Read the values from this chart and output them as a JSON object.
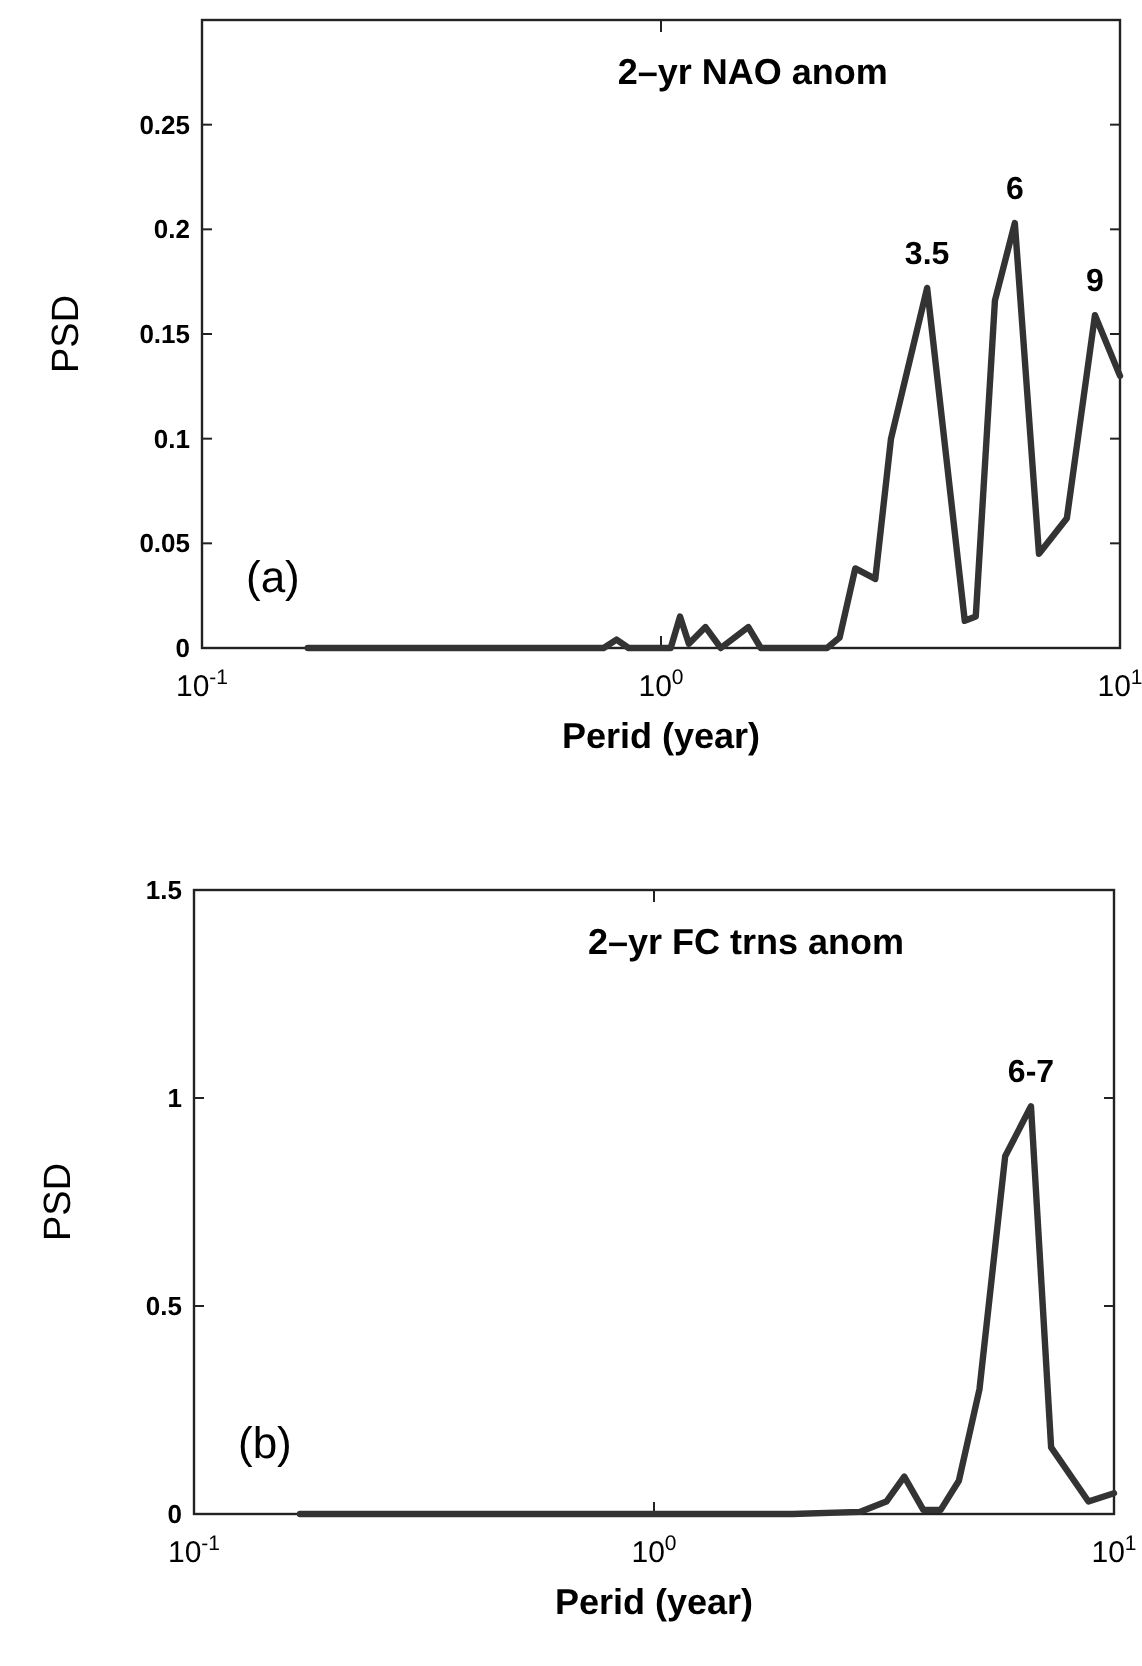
{
  "chart_data": [
    {
      "type": "line",
      "title": "2–yr NAO anom",
      "xlabel": "Perid (year)",
      "ylabel": "PSD",
      "log": "x",
      "color": "#333333",
      "grid": false,
      "marker": "none",
      "line_style": "solid",
      "x": [
        0.17,
        0.5,
        0.75,
        0.8,
        0.85,
        1.05,
        1.1,
        1.15,
        1.25,
        1.35,
        1.55,
        1.65,
        2.3,
        2.45,
        2.65,
        2.93,
        3.17,
        3.8,
        4.59,
        4.85,
        5.34,
        5.9,
        6.66,
        7.66,
        8.82,
        10
      ],
      "values": [
        0,
        0,
        0,
        0.004,
        0,
        0,
        0.015,
        0.002,
        0.01,
        0,
        0.01,
        0,
        0,
        0.005,
        0.038,
        0.033,
        0.1,
        0.172,
        0.013,
        0.015,
        0.166,
        0.203,
        0.045,
        0.062,
        0.159,
        0.13
      ],
      "xlim": [
        0.1,
        10
      ],
      "xticks": [
        {
          "value": 0.1,
          "label": "10$^{-1}$"
        },
        {
          "value": 1,
          "label": "10$^{0}$"
        },
        {
          "value": 10,
          "label": "10$^{1}$"
        }
      ],
      "ylim": [
        0,
        0.3
      ],
      "yticks": [
        0,
        0.05,
        0.1,
        0.15,
        0.2,
        0.25
      ],
      "annotations": [
        "(a)",
        {
          "text": "3.5",
          "x": 3.8,
          "y": 0.172
        },
        {
          "text": "6",
          "x": 5.9,
          "y": 0.203
        },
        {
          "text": "9",
          "x": 8.82,
          "y": 0.159
        }
      ]
    },
    {
      "type": "line",
      "title": "2–yr FC trns anom",
      "xlabel": "Perid (year)",
      "ylabel": "PSD",
      "log": "x",
      "color": "#333333",
      "grid": false,
      "marker": "none",
      "line_style": "solid",
      "x": [
        0.17,
        0.5,
        1,
        2,
        2.8,
        3.2,
        3.5,
        3.85,
        4.2,
        4.6,
        5.1,
        5.8,
        6.6,
        7.3,
        8.8,
        10
      ],
      "values": [
        0,
        0,
        0,
        0,
        0.005,
        0.03,
        0.09,
        0.01,
        0.01,
        0.08,
        0.3,
        0.86,
        0.98,
        0.16,
        0.03,
        0.05
      ],
      "xlim": [
        0.1,
        10
      ],
      "xticks": [
        {
          "value": 0.1,
          "label": "10$^{-1}$"
        },
        {
          "value": 1,
          "label": "10$^{0}$"
        },
        {
          "value": 10,
          "label": "10$^{1}$"
        }
      ],
      "ylim": [
        0,
        1.5
      ],
      "yticks": [
        0,
        0.5,
        1,
        1.5
      ],
      "annotations": [
        "(b)",
        {
          "text": "6-7",
          "x": 6.6,
          "y": 0.98
        }
      ]
    }
  ]
}
